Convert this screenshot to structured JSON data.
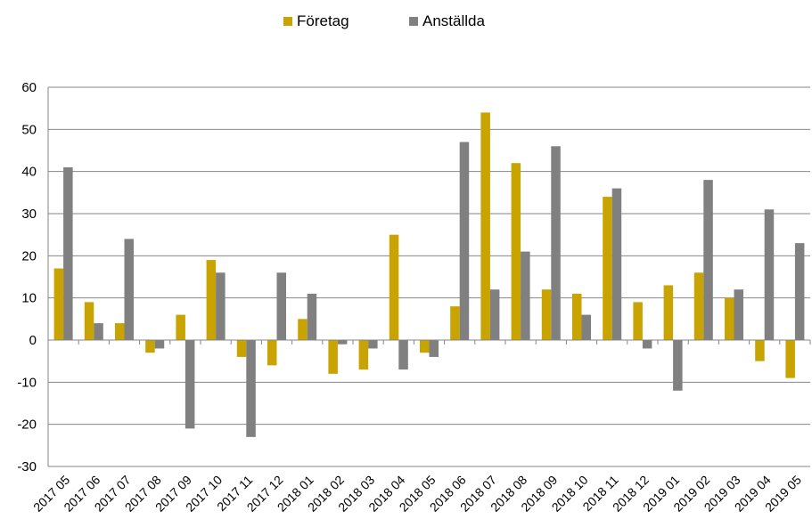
{
  "chart_data": {
    "type": "bar",
    "title": "",
    "xlabel": "",
    "ylabel": "",
    "ylim": [
      -30,
      60
    ],
    "yticks": [
      -30,
      -20,
      -10,
      0,
      10,
      20,
      30,
      40,
      50,
      60
    ],
    "grid": true,
    "legend_position": "top-center",
    "categories": [
      "2017 05",
      "2017 06",
      "2017 07",
      "2017 08",
      "2017 09",
      "2017 10",
      "2017 11",
      "2017 12",
      "2018 01",
      "2018 02",
      "2018 03",
      "2018 04",
      "2018 05",
      "2018 06",
      "2018 07",
      "2018 08",
      "2018 09",
      "2018 10",
      "2018 11",
      "2018 12",
      "2019 01",
      "2019 02",
      "2019 03",
      "2019 04",
      "2019 05"
    ],
    "series": [
      {
        "name": "Företag",
        "color": "#c9a400",
        "values": [
          17,
          9,
          4,
          -3,
          6,
          19,
          -4,
          -6,
          5,
          -8,
          -7,
          25,
          -3,
          8,
          54,
          42,
          12,
          11,
          34,
          9,
          13,
          16,
          10,
          -5,
          -9
        ]
      },
      {
        "name": "Anställda",
        "color": "#808080",
        "values": [
          41,
          4,
          24,
          -2,
          -21,
          16,
          -23,
          16,
          11,
          -1,
          -2,
          -7,
          -4,
          47,
          12,
          21,
          46,
          6,
          36,
          -2,
          -12,
          38,
          12,
          31,
          23
        ]
      }
    ]
  }
}
